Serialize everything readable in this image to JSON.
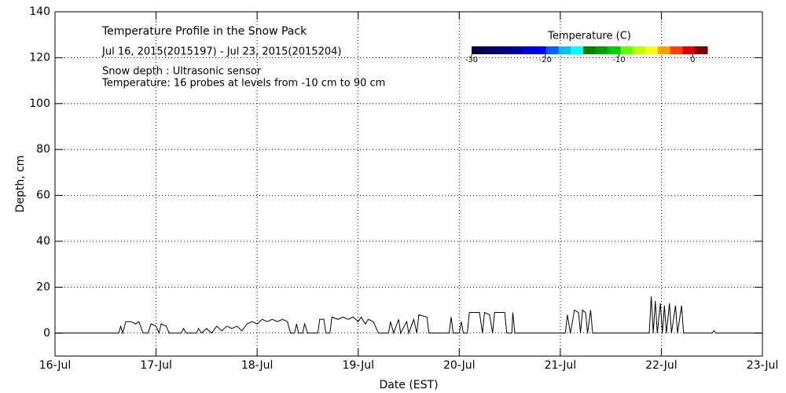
{
  "chart_data": {
    "type": "line",
    "title": "Temperature Profile in the Snow Pack",
    "subtitle": "Jul 16, 2015(2015197) - Jul 23, 2015(2015204)",
    "annotations": [
      "Snow depth : Ultrasonic sensor",
      "Temperature: 16 probes at levels from -10 cm to 90 cm"
    ],
    "xlabel": "Date (EST)",
    "ylabel": "Depth, cm",
    "xlim": [
      0,
      7
    ],
    "xticks": [
      {
        "value": 0,
        "label": "16-Jul"
      },
      {
        "value": 1,
        "label": "17-Jul"
      },
      {
        "value": 2,
        "label": "18-Jul"
      },
      {
        "value": 3,
        "label": "19-Jul"
      },
      {
        "value": 4,
        "label": "20-Jul"
      },
      {
        "value": 5,
        "label": "21-Jul"
      },
      {
        "value": 6,
        "label": "22-Jul"
      },
      {
        "value": 7,
        "label": "23-Jul"
      }
    ],
    "ylim": [
      -10,
      140
    ],
    "yticks": [
      0,
      20,
      40,
      60,
      80,
      100,
      120,
      140
    ],
    "grid": true,
    "colorbar": {
      "title": "Temperature (C)",
      "lim": [
        -30,
        2
      ],
      "ticks": [
        -30,
        -20,
        -10,
        0
      ],
      "colors": [
        "#000040",
        "#000060",
        "#000080",
        "#0000a0",
        "#0000d0",
        "#0000ff",
        "#0060ff",
        "#00c0ff",
        "#00ffff",
        "#008000",
        "#00a000",
        "#00d000",
        "#60ff00",
        "#c0ff00",
        "#ffff00",
        "#ffa000",
        "#ff4000",
        "#e00000",
        "#800000"
      ]
    },
    "series": [
      {
        "name": "Snow depth",
        "color": "#000000",
        "x": [
          0,
          0.63,
          0.65,
          0.67,
          0.7,
          0.75,
          0.8,
          0.83,
          0.87,
          0.92,
          0.95,
          1.0,
          1.03,
          1.05,
          1.1,
          1.13,
          1.25,
          1.27,
          1.3,
          1.4,
          1.42,
          1.45,
          1.5,
          1.55,
          1.6,
          1.65,
          1.7,
          1.75,
          1.8,
          1.85,
          1.9,
          1.95,
          2.0,
          2.05,
          2.1,
          2.15,
          2.2,
          2.25,
          2.3,
          2.33,
          2.37,
          2.39,
          2.41,
          2.45,
          2.47,
          2.5,
          2.6,
          2.62,
          2.66,
          2.68,
          2.72,
          2.74,
          2.8,
          2.85,
          2.9,
          2.95,
          3.0,
          3.03,
          3.07,
          3.1,
          3.15,
          3.2,
          3.3,
          3.32,
          3.35,
          3.4,
          3.42,
          3.48,
          3.5,
          3.55,
          3.58,
          3.6,
          3.68,
          3.7,
          3.9,
          3.92,
          3.94,
          4.0,
          4.02,
          4.04,
          4.08,
          4.1,
          4.2,
          4.23,
          4.25,
          4.3,
          4.33,
          4.35,
          4.45,
          4.47,
          4.52,
          4.53,
          4.55,
          5.05,
          5.07,
          5.1,
          5.14,
          5.18,
          5.2,
          5.22,
          5.25,
          5.27,
          5.3,
          5.32,
          5.88,
          5.9,
          5.92,
          5.94,
          5.96,
          5.99,
          6.01,
          6.03,
          6.05,
          6.08,
          6.1,
          6.14,
          6.16,
          6.2,
          6.22,
          6.5,
          6.52,
          6.54,
          7
        ],
        "values": [
          0,
          0,
          3,
          0,
          5,
          5,
          4,
          5,
          0,
          0,
          4,
          3,
          0,
          4,
          3,
          0,
          0,
          2,
          0,
          0,
          2,
          0,
          2,
          0,
          3,
          1,
          3,
          2,
          3,
          1,
          4,
          5,
          4,
          6,
          5,
          6,
          5,
          6,
          5,
          0,
          0,
          4,
          0,
          0,
          4,
          0,
          0,
          6,
          6,
          0,
          0,
          7,
          6,
          7,
          6,
          7,
          5,
          7,
          4,
          6,
          5,
          0,
          0,
          5,
          0,
          6,
          0,
          5,
          0,
          6,
          0,
          8,
          7,
          0,
          0,
          7,
          0,
          0,
          5,
          0,
          0,
          9,
          9,
          0,
          9,
          8,
          0,
          9,
          9,
          0,
          0,
          9,
          0,
          0,
          8,
          0,
          10,
          9,
          0,
          10,
          9,
          0,
          10,
          0,
          0,
          16,
          0,
          14,
          0,
          13,
          0,
          12,
          0,
          13,
          0,
          12,
          0,
          12,
          0,
          0,
          1,
          0,
          0
        ]
      }
    ]
  }
}
